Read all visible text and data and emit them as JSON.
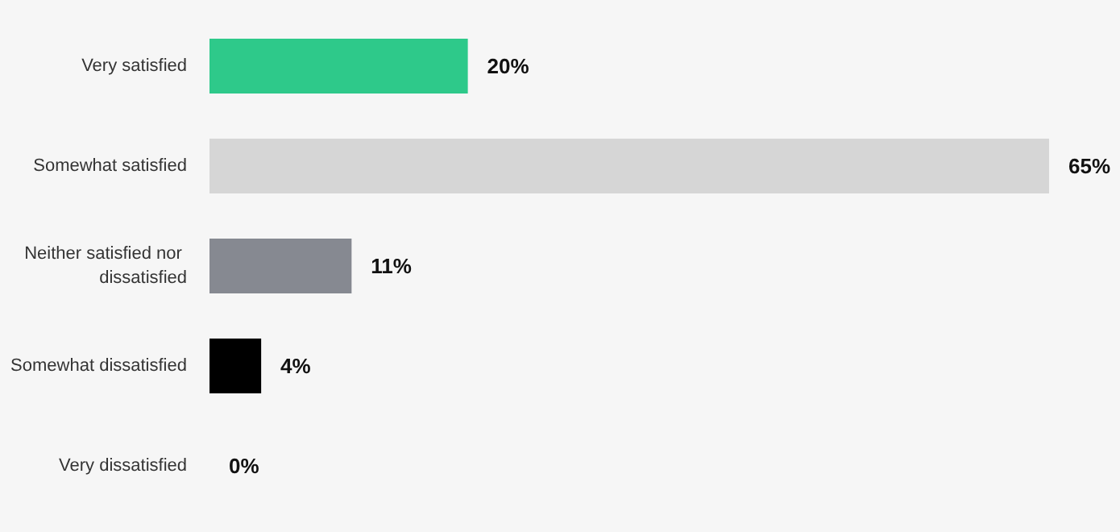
{
  "chart_data": {
    "type": "bar",
    "orientation": "horizontal",
    "categories": [
      "Very satisfied",
      "Somewhat satisfied",
      "Neither satisfied nor dissatisfied",
      "Somewhat dissatisfied",
      "Very dissatisfied"
    ],
    "values": [
      20,
      65,
      11,
      4,
      0
    ],
    "colors": [
      "#2ec98a",
      "#d6d6d6",
      "#868991",
      "#000000",
      "#e64b68"
    ],
    "value_labels": [
      "20%",
      "65%",
      "11%",
      "4%",
      "0%"
    ]
  }
}
